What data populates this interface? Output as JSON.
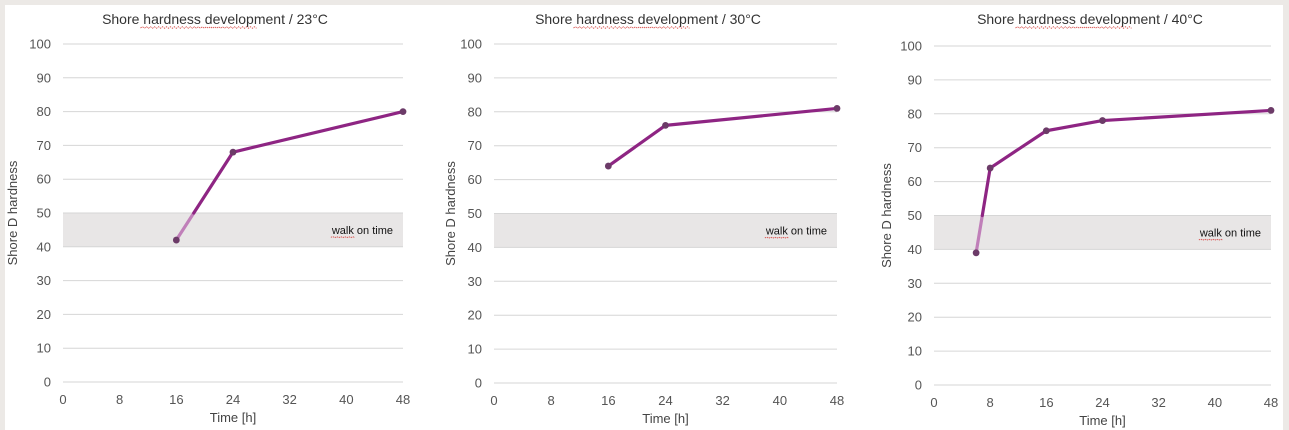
{
  "colors": {
    "line": "#8e2583",
    "line_faded": "#c07fb9",
    "point": "#6c3b68",
    "band": "#e8e6e6",
    "grid": "#d6d6d6"
  },
  "chart_data": [
    {
      "type": "line",
      "title": "Shore hardness development / 23°C",
      "xlabel": "Time [h]",
      "ylabel": "Shore D hardness",
      "xlim": [
        0,
        48
      ],
      "ylim": [
        0,
        100
      ],
      "xticks": [
        0,
        8,
        16,
        24,
        32,
        40,
        48
      ],
      "yticks": [
        0,
        10,
        20,
        30,
        40,
        50,
        60,
        70,
        80,
        90,
        100
      ],
      "grid": "horizontal",
      "band": {
        "from": 40,
        "to": 50,
        "label": "walk on time"
      },
      "series": [
        {
          "x": [
            16,
            24,
            48
          ],
          "y": [
            42,
            68,
            80
          ]
        }
      ]
    },
    {
      "type": "line",
      "title": "Shore hardness development / 30°C",
      "xlabel": "Time [h]",
      "ylabel": "Shore D hardness",
      "xlim": [
        0,
        48
      ],
      "ylim": [
        0,
        100
      ],
      "xticks": [
        0,
        8,
        16,
        24,
        32,
        40,
        48
      ],
      "yticks": [
        0,
        10,
        20,
        30,
        40,
        50,
        60,
        70,
        80,
        90,
        100
      ],
      "grid": "horizontal",
      "band": {
        "from": 40,
        "to": 50,
        "label": "walk on time"
      },
      "series": [
        {
          "x": [
            16,
            24,
            48
          ],
          "y": [
            64,
            76,
            81
          ]
        }
      ]
    },
    {
      "type": "line",
      "title": "Shore hardness development / 40°C",
      "xlabel": "Time [h]",
      "ylabel": "Shore D hardness",
      "xlim": [
        0,
        48
      ],
      "ylim": [
        0,
        100
      ],
      "xticks": [
        0,
        8,
        16,
        24,
        32,
        40,
        48
      ],
      "yticks": [
        0,
        10,
        20,
        30,
        40,
        50,
        60,
        70,
        80,
        90,
        100
      ],
      "grid": "horizontal",
      "band": {
        "from": 40,
        "to": 50,
        "label": "walk on time"
      },
      "series": [
        {
          "x": [
            6,
            8,
            16,
            24,
            48
          ],
          "y": [
            39,
            64,
            75,
            78,
            81
          ]
        }
      ]
    }
  ]
}
